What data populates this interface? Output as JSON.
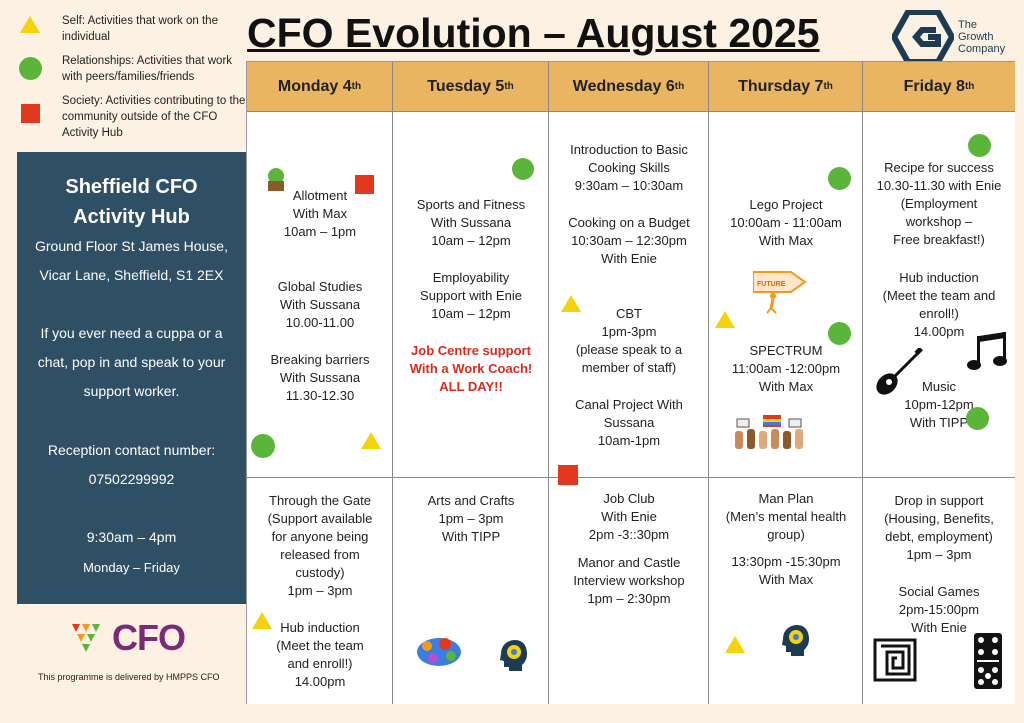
{
  "legend": [
    {
      "shape": "triangle",
      "color": "#f5d20b",
      "text": "Self: Activities that work on the individual"
    },
    {
      "shape": "circle",
      "color": "#5bb53a",
      "text": "Relationships: Activities that work with peers/families/friends"
    },
    {
      "shape": "square",
      "color": "#e2381e",
      "text": "Society: Activities contributing to the community outside of the CFO Activity Hub"
    }
  ],
  "title": "CFO Evolution – August 2025",
  "brand": {
    "line1": "The",
    "line2": "Growth",
    "line3": "Company"
  },
  "hub": {
    "name_line1": "Sheffield CFO",
    "name_line2": "Activity Hub",
    "address_line1": "Ground Floor St James House,",
    "address_line2": "Vicar Lane, Sheffield, S1 2EX",
    "cuppa_line1": "If you ever need a cuppa or a",
    "cuppa_line2": "chat, pop in and speak to your",
    "cuppa_line3": "support worker.",
    "reception_label": "Reception contact number:",
    "reception_number": "07502299992",
    "hours": "9:30am – 4pm",
    "days": "Monday – Friday"
  },
  "cfo_logo": "CFO",
  "footer": "This programme is delivered by HMPPS CFO",
  "days": [
    {
      "name": "Monday 4",
      "suffix": "th"
    },
    {
      "name": "Tuesday 5",
      "suffix": "th"
    },
    {
      "name": "Wednesday 6",
      "suffix": "th"
    },
    {
      "name": "Thursday 7",
      "suffix": "th"
    },
    {
      "name": "Friday 8",
      "suffix": "th"
    }
  ],
  "am": {
    "mon": [
      "Allotment\nWith Max\n10am – 1pm",
      "Global Studies\nWith Sussana\n10.00-11.00",
      "Breaking barriers\nWith Sussana\n11.30-12.30"
    ],
    "tue": [
      "Sports and Fitness\nWith  Sussana\n10am – 12pm",
      "Employability\nSupport with Enie\n10am – 12pm"
    ],
    "tue_red": "Job Centre support\nWith a Work Coach!\nALL DAY!!",
    "wed": [
      "Introduction to Basic\nCooking Skills\n9:30am – 10:30am",
      "Cooking on a Budget\n10:30am – 12:30pm\nWith Enie",
      "CBT\n1pm-3pm\n(please speak to a\nmember of staff)",
      "Canal Project With\nSussana\n10am-1pm"
    ],
    "thu": [
      "Lego Project\n10:00am - 11:00am\nWith Max",
      "SPECTRUM\n11:00am -12:00pm\nWith  Max"
    ],
    "thu_sign": "FUTURE",
    "fri": [
      "Recipe for success\n10.30-11.30 with Enie\n(Employment\nworkshop –\nFree breakfast!)",
      "Hub induction\n(Meet the team and\nenroll!)\n14.00pm",
      "Music\n10pm-12pm\nWith TIPP"
    ]
  },
  "pm": {
    "mon": [
      "Through the Gate\n(Support available\nfor anyone being\nreleased from\ncustody)\n1pm – 3pm",
      "Hub induction\n(Meet the team\nand enroll!)\n14.00pm"
    ],
    "tue": [
      "Arts and Crafts\n1pm – 3pm\nWith TIPP"
    ],
    "wed": [
      "Job Club\nWith Enie\n2pm -3::30pm",
      "Manor and Castle\nInterview workshop\n1pm – 2:30pm"
    ],
    "thu": [
      "Man Plan\n(Men’s mental health\ngroup)",
      "13:30pm -15:30pm\nWith Max"
    ],
    "fri": [
      "Drop in support\n(Housing, Benefits,\ndebt, employment)\n1pm – 3pm",
      "Social Games\n2pm-15:00pm\nWith Enie"
    ]
  }
}
